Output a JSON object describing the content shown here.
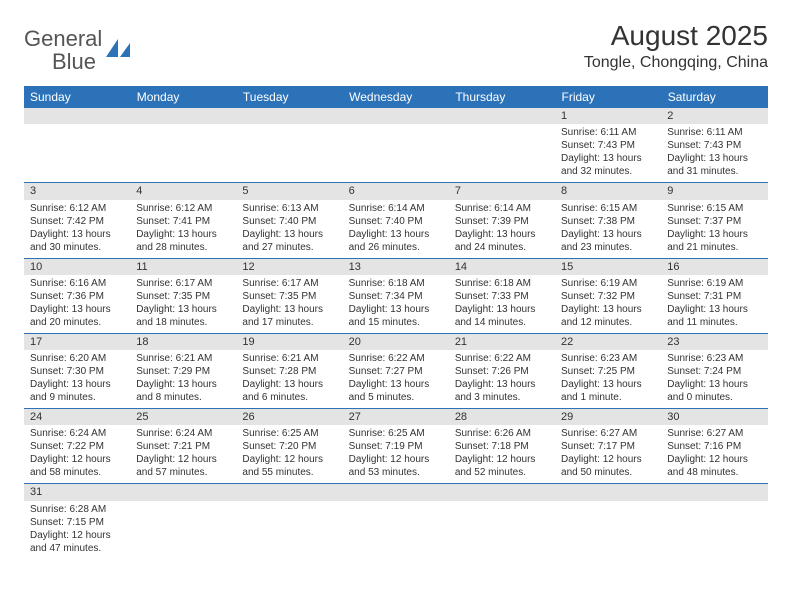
{
  "logo": {
    "word1": "General",
    "word2": "Blue"
  },
  "title": "August 2025",
  "location": "Tongle, Chongqing, China",
  "colors": {
    "header_bg": "#2c72b8",
    "header_fg": "#ffffff",
    "daynum_bg": "#e4e4e4",
    "divider": "#2c72b8",
    "logo_gray": "#555555",
    "logo_blue": "#2c72b8"
  },
  "weekdays": [
    "Sunday",
    "Monday",
    "Tuesday",
    "Wednesday",
    "Thursday",
    "Friday",
    "Saturday"
  ],
  "weeks": [
    [
      null,
      null,
      null,
      null,
      null,
      {
        "n": "1",
        "sr": "Sunrise: 6:11 AM",
        "ss": "Sunset: 7:43 PM",
        "dl1": "Daylight: 13 hours",
        "dl2": "and 32 minutes."
      },
      {
        "n": "2",
        "sr": "Sunrise: 6:11 AM",
        "ss": "Sunset: 7:43 PM",
        "dl1": "Daylight: 13 hours",
        "dl2": "and 31 minutes."
      }
    ],
    [
      {
        "n": "3",
        "sr": "Sunrise: 6:12 AM",
        "ss": "Sunset: 7:42 PM",
        "dl1": "Daylight: 13 hours",
        "dl2": "and 30 minutes."
      },
      {
        "n": "4",
        "sr": "Sunrise: 6:12 AM",
        "ss": "Sunset: 7:41 PM",
        "dl1": "Daylight: 13 hours",
        "dl2": "and 28 minutes."
      },
      {
        "n": "5",
        "sr": "Sunrise: 6:13 AM",
        "ss": "Sunset: 7:40 PM",
        "dl1": "Daylight: 13 hours",
        "dl2": "and 27 minutes."
      },
      {
        "n": "6",
        "sr": "Sunrise: 6:14 AM",
        "ss": "Sunset: 7:40 PM",
        "dl1": "Daylight: 13 hours",
        "dl2": "and 26 minutes."
      },
      {
        "n": "7",
        "sr": "Sunrise: 6:14 AM",
        "ss": "Sunset: 7:39 PM",
        "dl1": "Daylight: 13 hours",
        "dl2": "and 24 minutes."
      },
      {
        "n": "8",
        "sr": "Sunrise: 6:15 AM",
        "ss": "Sunset: 7:38 PM",
        "dl1": "Daylight: 13 hours",
        "dl2": "and 23 minutes."
      },
      {
        "n": "9",
        "sr": "Sunrise: 6:15 AM",
        "ss": "Sunset: 7:37 PM",
        "dl1": "Daylight: 13 hours",
        "dl2": "and 21 minutes."
      }
    ],
    [
      {
        "n": "10",
        "sr": "Sunrise: 6:16 AM",
        "ss": "Sunset: 7:36 PM",
        "dl1": "Daylight: 13 hours",
        "dl2": "and 20 minutes."
      },
      {
        "n": "11",
        "sr": "Sunrise: 6:17 AM",
        "ss": "Sunset: 7:35 PM",
        "dl1": "Daylight: 13 hours",
        "dl2": "and 18 minutes."
      },
      {
        "n": "12",
        "sr": "Sunrise: 6:17 AM",
        "ss": "Sunset: 7:35 PM",
        "dl1": "Daylight: 13 hours",
        "dl2": "and 17 minutes."
      },
      {
        "n": "13",
        "sr": "Sunrise: 6:18 AM",
        "ss": "Sunset: 7:34 PM",
        "dl1": "Daylight: 13 hours",
        "dl2": "and 15 minutes."
      },
      {
        "n": "14",
        "sr": "Sunrise: 6:18 AM",
        "ss": "Sunset: 7:33 PM",
        "dl1": "Daylight: 13 hours",
        "dl2": "and 14 minutes."
      },
      {
        "n": "15",
        "sr": "Sunrise: 6:19 AM",
        "ss": "Sunset: 7:32 PM",
        "dl1": "Daylight: 13 hours",
        "dl2": "and 12 minutes."
      },
      {
        "n": "16",
        "sr": "Sunrise: 6:19 AM",
        "ss": "Sunset: 7:31 PM",
        "dl1": "Daylight: 13 hours",
        "dl2": "and 11 minutes."
      }
    ],
    [
      {
        "n": "17",
        "sr": "Sunrise: 6:20 AM",
        "ss": "Sunset: 7:30 PM",
        "dl1": "Daylight: 13 hours",
        "dl2": "and 9 minutes."
      },
      {
        "n": "18",
        "sr": "Sunrise: 6:21 AM",
        "ss": "Sunset: 7:29 PM",
        "dl1": "Daylight: 13 hours",
        "dl2": "and 8 minutes."
      },
      {
        "n": "19",
        "sr": "Sunrise: 6:21 AM",
        "ss": "Sunset: 7:28 PM",
        "dl1": "Daylight: 13 hours",
        "dl2": "and 6 minutes."
      },
      {
        "n": "20",
        "sr": "Sunrise: 6:22 AM",
        "ss": "Sunset: 7:27 PM",
        "dl1": "Daylight: 13 hours",
        "dl2": "and 5 minutes."
      },
      {
        "n": "21",
        "sr": "Sunrise: 6:22 AM",
        "ss": "Sunset: 7:26 PM",
        "dl1": "Daylight: 13 hours",
        "dl2": "and 3 minutes."
      },
      {
        "n": "22",
        "sr": "Sunrise: 6:23 AM",
        "ss": "Sunset: 7:25 PM",
        "dl1": "Daylight: 13 hours",
        "dl2": "and 1 minute."
      },
      {
        "n": "23",
        "sr": "Sunrise: 6:23 AM",
        "ss": "Sunset: 7:24 PM",
        "dl1": "Daylight: 13 hours",
        "dl2": "and 0 minutes."
      }
    ],
    [
      {
        "n": "24",
        "sr": "Sunrise: 6:24 AM",
        "ss": "Sunset: 7:22 PM",
        "dl1": "Daylight: 12 hours",
        "dl2": "and 58 minutes."
      },
      {
        "n": "25",
        "sr": "Sunrise: 6:24 AM",
        "ss": "Sunset: 7:21 PM",
        "dl1": "Daylight: 12 hours",
        "dl2": "and 57 minutes."
      },
      {
        "n": "26",
        "sr": "Sunrise: 6:25 AM",
        "ss": "Sunset: 7:20 PM",
        "dl1": "Daylight: 12 hours",
        "dl2": "and 55 minutes."
      },
      {
        "n": "27",
        "sr": "Sunrise: 6:25 AM",
        "ss": "Sunset: 7:19 PM",
        "dl1": "Daylight: 12 hours",
        "dl2": "and 53 minutes."
      },
      {
        "n": "28",
        "sr": "Sunrise: 6:26 AM",
        "ss": "Sunset: 7:18 PM",
        "dl1": "Daylight: 12 hours",
        "dl2": "and 52 minutes."
      },
      {
        "n": "29",
        "sr": "Sunrise: 6:27 AM",
        "ss": "Sunset: 7:17 PM",
        "dl1": "Daylight: 12 hours",
        "dl2": "and 50 minutes."
      },
      {
        "n": "30",
        "sr": "Sunrise: 6:27 AM",
        "ss": "Sunset: 7:16 PM",
        "dl1": "Daylight: 12 hours",
        "dl2": "and 48 minutes."
      }
    ],
    [
      {
        "n": "31",
        "sr": "Sunrise: 6:28 AM",
        "ss": "Sunset: 7:15 PM",
        "dl1": "Daylight: 12 hours",
        "dl2": "and 47 minutes."
      },
      null,
      null,
      null,
      null,
      null,
      null
    ]
  ]
}
